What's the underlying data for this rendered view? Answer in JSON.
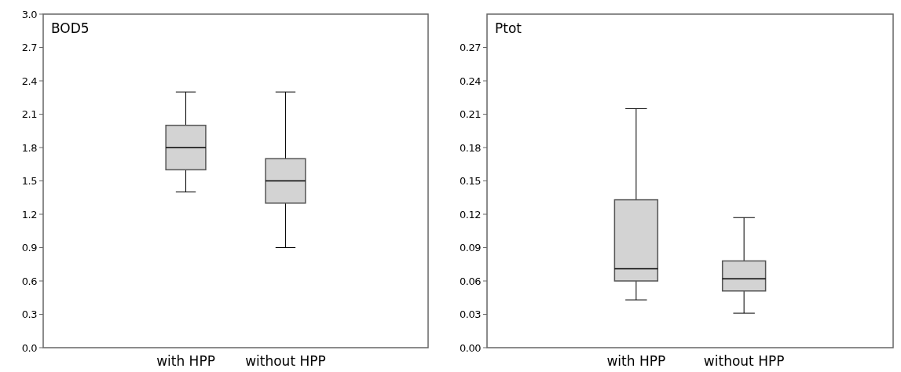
{
  "chart_data": [
    {
      "type": "box",
      "title": "BOD5",
      "categories": [
        "with HPP",
        "without HPP"
      ],
      "color": "#d3d3d3",
      "boxes": [
        {
          "low": 1.4,
          "q1": 1.6,
          "median": 1.8,
          "q3": 2.0,
          "high": 2.3
        },
        {
          "low": 0.9,
          "q1": 1.3,
          "median": 1.5,
          "q3": 1.7,
          "high": 2.3
        }
      ],
      "ylim": [
        0,
        3.0
      ],
      "yticks": [
        {
          "value": 0,
          "label": "0.0"
        },
        {
          "value": 0.3,
          "label": "0.3"
        },
        {
          "value": 0.6,
          "label": "0.6"
        },
        {
          "value": 0.9,
          "label": "0.9"
        },
        {
          "value": 1.2,
          "label": "1.2"
        },
        {
          "value": 1.5,
          "label": "1.5"
        },
        {
          "value": 1.8,
          "label": "1.8"
        },
        {
          "value": 2.1,
          "label": "2.1"
        },
        {
          "value": 2.4,
          "label": "2.4"
        },
        {
          "value": 2.7,
          "label": "2.7"
        },
        {
          "value": 3.0,
          "label": "3.0"
        }
      ]
    },
    {
      "type": "box",
      "title": "Ptot",
      "categories": [
        "with HPP",
        "without HPP"
      ],
      "color": "#d3d3d3",
      "boxes": [
        {
          "low": 0.043,
          "q1": 0.06,
          "median": 0.071,
          "q3": 0.133,
          "high": 0.215
        },
        {
          "low": 0.031,
          "q1": 0.051,
          "median": 0.062,
          "q3": 0.078,
          "high": 0.117
        }
      ],
      "ylim": [
        0,
        0.3
      ],
      "yticks": [
        {
          "value": 0,
          "label": "0.00"
        },
        {
          "value": 0.03,
          "label": "0.03"
        },
        {
          "value": 0.06,
          "label": "0.06"
        },
        {
          "value": 0.09,
          "label": "0.09"
        },
        {
          "value": 0.12,
          "label": "0.12"
        },
        {
          "value": 0.15,
          "label": "0.15"
        },
        {
          "value": 0.18,
          "label": "0.18"
        },
        {
          "value": 0.21,
          "label": "0.21"
        },
        {
          "value": 0.24,
          "label": "0.24"
        },
        {
          "value": 0.27,
          "label": "0.27"
        }
      ]
    }
  ]
}
